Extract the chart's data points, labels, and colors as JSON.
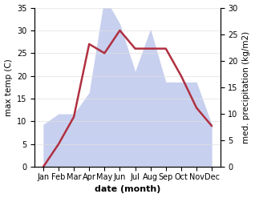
{
  "months": [
    "Jan",
    "Feb",
    "Mar",
    "Apr",
    "May",
    "Jun",
    "Jul",
    "Aug",
    "Sep",
    "Oct",
    "Nov",
    "Dec"
  ],
  "temperature": [
    0,
    5,
    11,
    27,
    25,
    30,
    26,
    26,
    26,
    20,
    13,
    9
  ],
  "precipitation": [
    8,
    10,
    10,
    14,
    32,
    27,
    18,
    26,
    16,
    16,
    16,
    8
  ],
  "temp_color": "#b03040",
  "precip_fill_color": "#c8d0ef",
  "precip_edge_color": "#c8d0ef",
  "temp_ylim": [
    0,
    35
  ],
  "precip_ylim": [
    0,
    30
  ],
  "temp_yticks": [
    0,
    5,
    10,
    15,
    20,
    25,
    30,
    35
  ],
  "precip_yticks": [
    0,
    5,
    10,
    15,
    20,
    25,
    30
  ],
  "ylabel_left": "max temp (C)",
  "ylabel_right": "med. precipitation (kg/m2)",
  "xlabel": "date (month)",
  "background_color": "#ffffff",
  "label_fontsize": 7.5,
  "tick_fontsize": 7,
  "xlabel_fontsize": 8
}
